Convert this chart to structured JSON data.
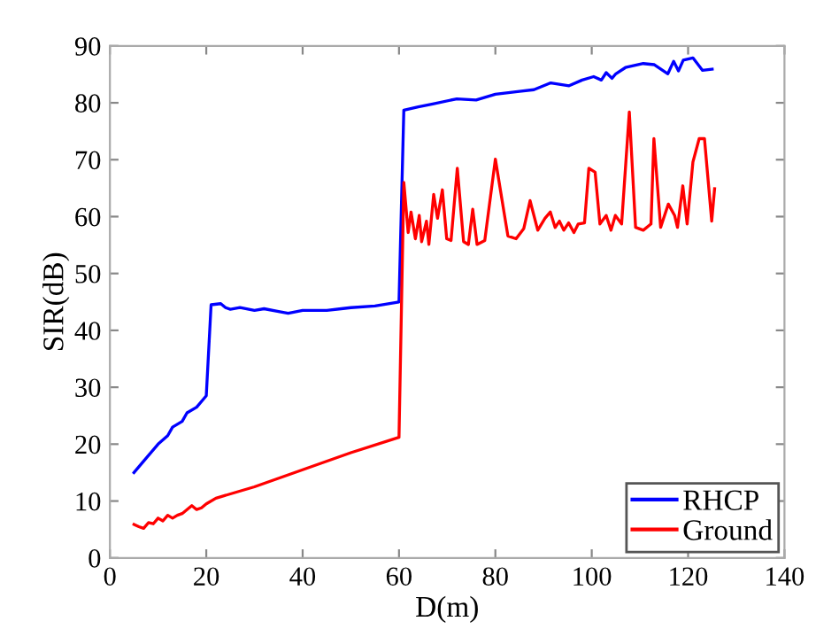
{
  "chart_data": {
    "type": "line",
    "xlabel": "D(m)",
    "ylabel": "SIR(dB)",
    "xlim": [
      0,
      140
    ],
    "xticks": [
      0,
      20,
      40,
      60,
      80,
      100,
      120,
      140
    ],
    "ylim": [
      0,
      90
    ],
    "yticks": [
      0,
      10,
      20,
      30,
      40,
      50,
      60,
      70,
      80,
      90
    ],
    "grid": false,
    "legend": "bottom right",
    "marker": "none",
    "line_style": "solid",
    "series": [
      {
        "name": "RHCP",
        "color": "#0000ff",
        "x": [
          5,
          8,
          10,
          12,
          13,
          15,
          16,
          18,
          20,
          21,
          23,
          24,
          25,
          27,
          30,
          32,
          35,
          37,
          40,
          45,
          48,
          50,
          55,
          60,
          61,
          64,
          67,
          72,
          76,
          80,
          85,
          88,
          91.5,
          95.3,
          98,
          100.4,
          102,
          103,
          104.2,
          105,
          107,
          110.7,
          113,
          115.8,
          117,
          118,
          119,
          121,
          123,
          125
        ],
        "values": [
          15,
          18,
          20,
          21.5,
          23,
          24,
          25.5,
          26.5,
          28.5,
          44.5,
          44.7,
          44,
          43.7,
          44,
          43.5,
          43.8,
          43.3,
          43,
          43.5,
          43.5,
          43.8,
          44,
          44.3,
          45,
          78.7,
          79.3,
          79.8,
          80.7,
          80.5,
          81.5,
          82,
          82.3,
          83.5,
          83,
          84,
          84.6,
          84,
          85.3,
          84.3,
          85.1,
          86.2,
          86.9,
          86.7,
          85.1,
          87.3,
          85.6,
          87.5,
          87.9,
          85.7,
          85.9
        ]
      },
      {
        "name": "Ground",
        "color": "#ff0000",
        "x": [
          5,
          6,
          7,
          8,
          9,
          10,
          11,
          12,
          13,
          14,
          15,
          16,
          17,
          18,
          19,
          20,
          22,
          30,
          40,
          50,
          60,
          61,
          61.9,
          62.5,
          63.4,
          64.2,
          64.7,
          65.7,
          66.2,
          67.2,
          68,
          69,
          69.9,
          70.8,
          72.1,
          73.4,
          74.4,
          75.3,
          76.2,
          77.8,
          80,
          82.6,
          84.3,
          85.9,
          87.2,
          88.8,
          90.3,
          91.4,
          92.4,
          93.3,
          94.2,
          95.2,
          96.3,
          97.2,
          98.5,
          99.4,
          100.7,
          101.7,
          103,
          104,
          104.9,
          106.2,
          107.8,
          109.1,
          110.7,
          112.3,
          112.9,
          114.3,
          115.9,
          117.2,
          117.8,
          118.9,
          119.8,
          121,
          122.3,
          123.4,
          124.9,
          125.5
        ],
        "values": [
          5.9,
          5.5,
          5.2,
          6.2,
          6,
          7,
          6.5,
          7.5,
          7,
          7.5,
          7.8,
          8.5,
          9.2,
          8.5,
          8.8,
          9.5,
          10.5,
          12.5,
          15.5,
          18.5,
          21.2,
          66,
          57.2,
          60.8,
          56.1,
          60.2,
          55.6,
          59.2,
          55.1,
          63.9,
          59.7,
          64.7,
          56.1,
          55.8,
          68.5,
          55.6,
          55.1,
          61.3,
          55.1,
          55.8,
          70.1,
          56.6,
          56.1,
          57.9,
          62.8,
          57.6,
          59.7,
          60.8,
          58.1,
          59.2,
          57.6,
          58.9,
          57.2,
          58.7,
          58.9,
          68.5,
          67.8,
          58.7,
          60.2,
          57.6,
          60.2,
          58.7,
          78.4,
          58.1,
          57.6,
          58.7,
          73.7,
          58.1,
          62.2,
          60.2,
          58.1,
          65.4,
          58.7,
          69.6,
          73.7,
          73.7,
          59.2,
          64.9
        ]
      }
    ]
  }
}
